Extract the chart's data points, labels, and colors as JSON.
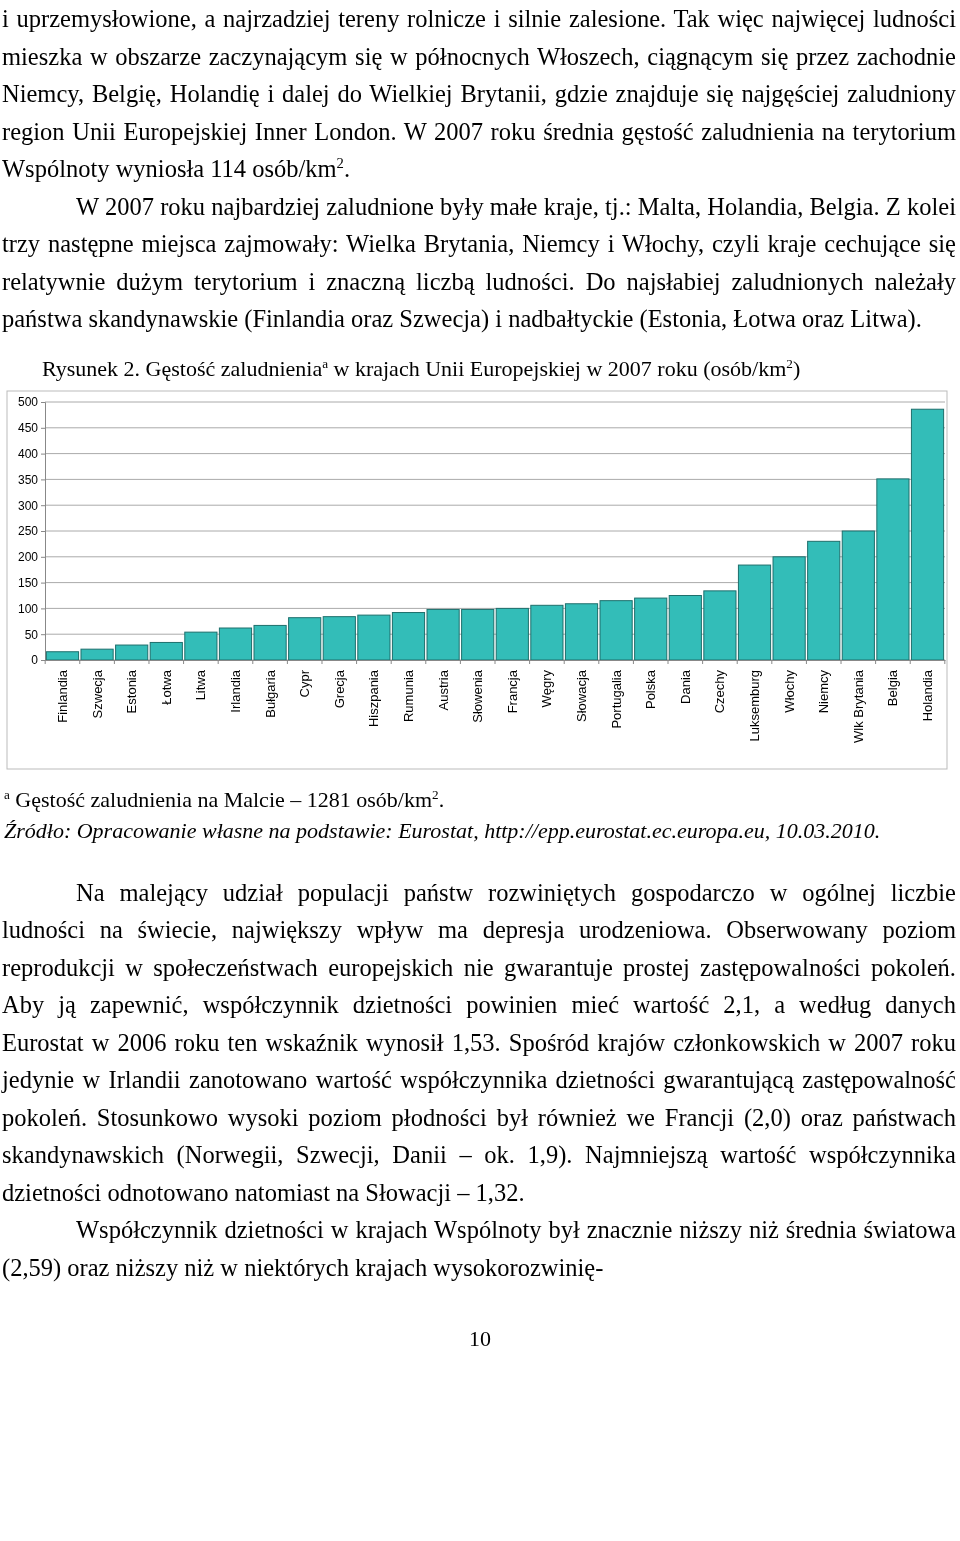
{
  "chart_data": {
    "type": "bar",
    "title": "Rysunek 2. Gęstość zaludnienia$^{a}$ w krajach Unii Europejskiej w 2007 roku (osób/km$^{2}$)",
    "categories": [
      "Finlandia",
      "Szwecja",
      "Estonia",
      "Łotwa",
      "Litwa",
      "Irlandia",
      "Bułgaria",
      "Cypr",
      "Grecja",
      "Hiszpania",
      "Rumunia",
      "Austria",
      "Słowenia",
      "Francja",
      "Węgry",
      "Słowacja",
      "Portugalia",
      "Polska",
      "Dania",
      "Czechy",
      "Luksemburg",
      "Włochy",
      "Niemcy",
      "Wlk Brytania",
      "Belgia",
      "Holandia"
    ],
    "values": [
      16,
      21,
      29,
      34,
      54,
      62,
      67,
      82,
      84,
      87,
      92,
      98,
      98,
      100,
      106,
      109,
      115,
      120,
      125,
      134,
      184,
      200,
      230,
      250,
      351,
      486
    ],
    "color": "#33bdb8",
    "ylim": [
      0,
      500
    ],
    "yticks": [
      0,
      50,
      100,
      150,
      200,
      250,
      300,
      350,
      400,
      450,
      500
    ],
    "grid": "y",
    "annotations": [
      "i uprzemysłowione, a najrzadziej tereny rolnicze i silnie zalesione. Tak więc najwięcej ludności mieszka w obszarze zaczynającym się w północnych Włoszech, ciągnącym się przez zachodnie Niemcy, Belgię, Holandię i dalej do Wielkiej Brytanii, gdzie znajduje się najgęściej zaludniony region Unii Europejskiej Inner London. W 2007 roku średnia gęstość zaludnienia na terytorium Wspólnoty wyniosła 114 osób/km$^{2}$.",
      "W 2007 roku najbardziej zaludnione były małe kraje, tj.: Malta, Holandia, Belgia. Z kolei trzy następne miejsca zajmowały: Wielka Brytania, Niemcy i Włochy, czyli kraje cechujące się relatywnie dużym terytorium i znaczną liczbą ludności. Do najsłabiej zaludnionych należały państwa skandynawskie (Finlandia oraz Szwecja) i nadbałtyckie (Estonia, Łotwa oraz Litwa).",
      "$^{a}$ Gęstość zaludnienia na Malcie – 1281 osób/km$^{2}$.",
      "Źródło: Opracowanie własne na podstawie: Eurostat, http://epp.eurostat.ec.europa.eu, 10.03.2010.",
      "Na malejący udział populacji państw rozwiniętych gospodarczo w ogólnej liczbie ludności na świecie, największy wpływ ma depresja urodzeniowa. Obserwowany poziom reprodukcji w społeczeństwach europejskich nie gwarantuje prostej zastępowalności pokoleń. Aby ją zapewnić, współczynnik dzietności powinien mieć wartość 2,1, a według danych Eurostat w 2006 roku ten wskaźnik wynosił 1,53. Spośród krajów członkowskich w 2007 roku jedynie w Irlandii zanotowano wartość współczynnika dzietności gwarantującą zastępowalność pokoleń. Stosunkowo wysoki poziom płodności był również we Francji (2,0) oraz państwach skandynawskich (Norwegii, Szwecji, Danii – ok. 1,9). Najmniejszą wartość współczynnika dzietności odnotowano natomiast na Słowacji – 1,32.",
      "Współczynnik dzietności w krajach Wspólnoty był znacznie niższy niż średnia światowa (2,59) oraz niższy niż w niektórych krajach wysokorozwinię-",
      "10"
    ]
  }
}
